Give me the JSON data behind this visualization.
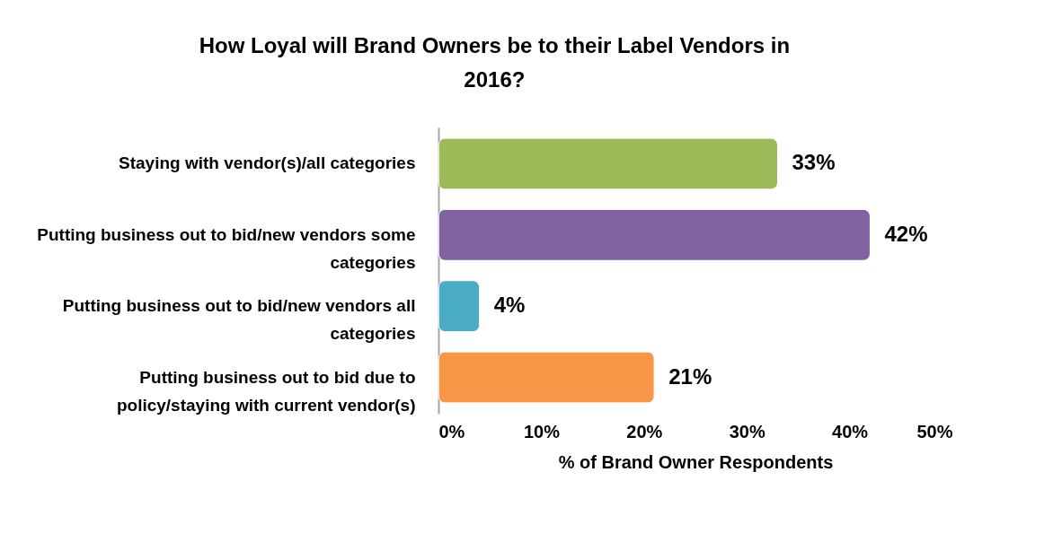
{
  "chart_data": {
    "type": "bar",
    "orientation": "horizontal",
    "title": "How Loyal  will Brand Owners be to their Label Vendors in 2016?",
    "xlabel": "% of Brand Owner Respondents",
    "categories": [
      "Staying with vendor(s)/all categories",
      "Putting business out to bid/new vendors some categories",
      "Putting business out to bid/new vendors all categories",
      "Putting business out to bid due to policy/staying with current vendor(s)"
    ],
    "values": [
      33,
      42,
      4,
      21
    ],
    "colors": [
      "#9bbb59",
      "#8064a2",
      "#4bacc6",
      "#f79646"
    ],
    "value_labels": [
      "33%",
      "42%",
      "4%",
      "21%"
    ],
    "xlim": [
      0,
      50
    ],
    "xticks": [
      {
        "value": 0,
        "label": "0%"
      },
      {
        "value": 10,
        "label": "10%"
      },
      {
        "value": 20,
        "label": "20%"
      },
      {
        "value": 30,
        "label": "30%"
      },
      {
        "value": 40,
        "label": "40%"
      },
      {
        "value": 50,
        "label": "50%"
      }
    ],
    "grid": false
  }
}
